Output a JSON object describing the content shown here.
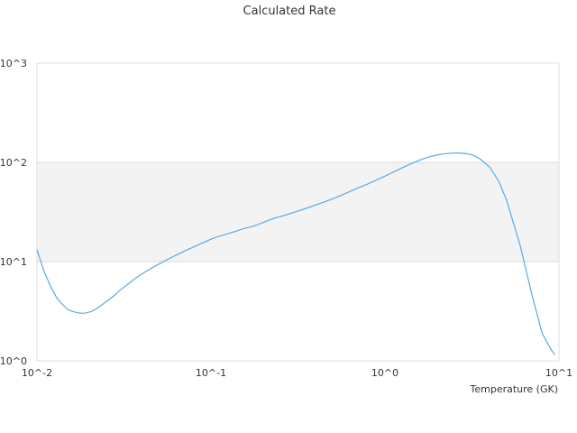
{
  "chart_data": {
    "type": "line",
    "title": "Calculated Rate",
    "xlabel": "Temperature (GK)",
    "ylabel": "",
    "x_scale": "log",
    "y_scale": "log",
    "xlim": [
      0.01,
      10
    ],
    "ylim": [
      1,
      1000
    ],
    "x_ticks": [
      {
        "value": 0.01,
        "label": "10^-2"
      },
      {
        "value": 0.1,
        "label": "10^-1"
      },
      {
        "value": 1,
        "label": "10^0"
      },
      {
        "value": 10,
        "label": "10^1"
      }
    ],
    "y_ticks": [
      {
        "value": 1,
        "label": "10^0"
      },
      {
        "value": 10,
        "label": "10^1"
      },
      {
        "value": 100,
        "label": "10^2"
      },
      {
        "value": 1000,
        "label": "10^3"
      }
    ],
    "grid": true,
    "banded_decade": [
      10,
      100
    ],
    "colors": {
      "line": "#5aa9e6",
      "band": "#f3f3f3",
      "grid": "#dddddd"
    },
    "series": [
      {
        "x": [
          0.01,
          0.011,
          0.012,
          0.013,
          0.014,
          0.015,
          0.016,
          0.017,
          0.018,
          0.019,
          0.02,
          0.021,
          0.022,
          0.024,
          0.026,
          0.028,
          0.03,
          0.033,
          0.036,
          0.04,
          0.045,
          0.05,
          0.055,
          0.06,
          0.07,
          0.08,
          0.09,
          0.1,
          0.11,
          0.12,
          0.13,
          0.14,
          0.15,
          0.16,
          0.17,
          0.18,
          0.2,
          0.22,
          0.24,
          0.26,
          0.28,
          0.3,
          0.35,
          0.4,
          0.45,
          0.5,
          0.6,
          0.7,
          0.8,
          0.9,
          1.0,
          1.2,
          1.4,
          1.6,
          1.8,
          2.0,
          2.2,
          2.4,
          2.6,
          2.8,
          3.0,
          3.2,
          3.5,
          4.0,
          4.5,
          5.0,
          6.0,
          7.0,
          8.0,
          9.0,
          9.5
        ],
        "y": [
          13.2,
          7.9,
          5.6,
          4.3,
          3.7,
          3.3,
          3.15,
          3.05,
          3.02,
          3.03,
          3.1,
          3.2,
          3.35,
          3.75,
          4.15,
          4.6,
          5.15,
          5.85,
          6.6,
          7.5,
          8.5,
          9.4,
          10.3,
          11.1,
          12.7,
          14.1,
          15.5,
          16.8,
          17.9,
          18.7,
          19.5,
          20.3,
          21.2,
          21.9,
          22.4,
          23.1,
          24.8,
          26.6,
          27.9,
          29.0,
          30.2,
          31.3,
          34.3,
          37.2,
          40.0,
          42.9,
          49.0,
          55.3,
          60.8,
          66.9,
          72.7,
          84.9,
          96.3,
          106.0,
          113.8,
          118.9,
          122.1,
          123.8,
          124.3,
          123.6,
          121.9,
          118.3,
          109.3,
          89.4,
          65.0,
          41.6,
          14.3,
          4.6,
          1.9,
          1.3,
          1.15
        ]
      }
    ]
  }
}
